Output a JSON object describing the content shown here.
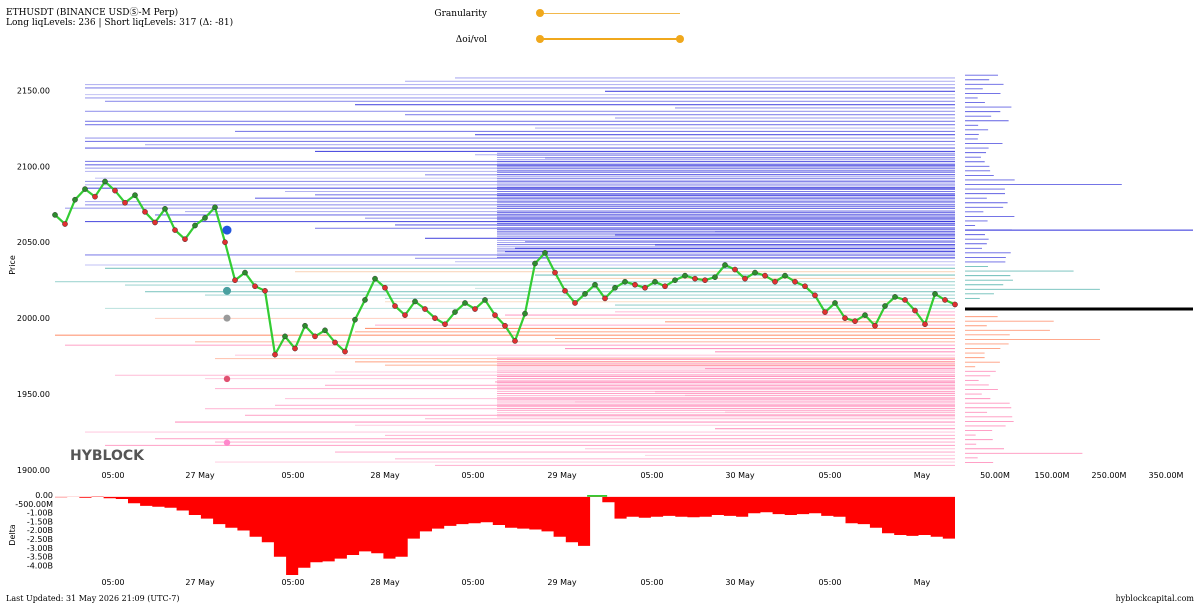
{
  "header": {
    "title": "ETHUSDT (BINANCE USDⓈ-M Perp)",
    "summary": "Long liqLevels: 236 | Short liqLevels: 317 (Δ: -81)"
  },
  "controls": {
    "granularity_label": "Granularity",
    "granularity_value": 0.0,
    "oi_vol_label": "Δoi/vol",
    "oi_vol_range": [
      0.0,
      1.0
    ]
  },
  "footer": {
    "last_updated": "Last Updated: 31 May 2026 21:09 (UTC-7)",
    "site": "hyblockcapital.com"
  },
  "watermark": "HYBLOCK",
  "colors": {
    "up_candle": "#33cc33",
    "down_candle": "#e03030",
    "delta_fill": "#ff0000",
    "short_levels": "#2b2bd9",
    "long_levels": "#ff6fa8",
    "mid_levels": "#3aa8a0",
    "price_marker": "#000000"
  },
  "chart_data": [
    {
      "type": "line",
      "title": "",
      "ylabel": "Price",
      "ylim": [
        1900,
        2170
      ],
      "y_ticks": [
        "1900.00",
        "1950.00",
        "2000.00",
        "2050.00",
        "2100.00",
        "2150.00"
      ],
      "x_tick_labels": [
        "05:00",
        "27 May",
        "05:00",
        "28 May",
        "05:00",
        "29 May",
        "05:00",
        "30 May",
        "05:00",
        "May"
      ],
      "grid": false,
      "current_price": 2006,
      "series": [
        {
          "values": [
            2068,
            2062,
            2078,
            2085,
            2080,
            2090,
            2084,
            2076,
            2081,
            2070,
            2063,
            2072,
            2058,
            2052,
            2061,
            2066,
            2073,
            2050,
            2025,
            2030,
            2021,
            2018,
            1976,
            1988,
            1980,
            1995,
            1988,
            1992,
            1984,
            1978,
            1999,
            2012,
            2026,
            2020,
            2008,
            2002,
            2011,
            2006,
            2000,
            1996,
            2004,
            2010,
            2006,
            2012,
            2002,
            1995,
            1985,
            2003,
            2036,
            2043,
            2030,
            2018,
            2010,
            2016,
            2022,
            2013,
            2020,
            2024,
            2022,
            2020,
            2024,
            2021,
            2025,
            2028,
            2026,
            2025,
            2027,
            2035,
            2032,
            2026,
            2030,
            2028,
            2024,
            2028,
            2024,
            2021,
            2015,
            2004,
            2010,
            2000,
            1998,
            2002,
            1995,
            2008,
            2014,
            2012,
            2005,
            1996,
            2016,
            2012,
            2009
          ]
        }
      ],
      "liq_volume_axis_ticks": [
        "50.00M",
        "150.00M",
        "250.00M",
        "350.00M"
      ]
    },
    {
      "type": "area",
      "title": "",
      "ylabel": "Delta",
      "ylim": [
        -4.3,
        0.1
      ],
      "y_ticks": [
        "0.00",
        "-500.00M",
        "-1.00B",
        "-1.50B",
        "-2.00B",
        "-2.50B",
        "-3.00B",
        "-3.50B",
        "-4.00B"
      ],
      "x_tick_labels": [
        "05:00",
        "27 May",
        "05:00",
        "28 May",
        "05:00",
        "29 May",
        "05:00",
        "30 May",
        "05:00",
        "May"
      ],
      "series": [
        {
          "values": [
            -0.02,
            0.0,
            -0.05,
            0.02,
            -0.08,
            -0.12,
            -0.35,
            -0.5,
            -0.55,
            -0.6,
            -0.75,
            -1.0,
            -1.2,
            -1.5,
            -1.7,
            -1.85,
            -2.2,
            -2.5,
            -3.3,
            -4.3,
            -3.9,
            -3.6,
            -3.55,
            -3.4,
            -3.2,
            -3.0,
            -3.1,
            -3.4,
            -3.3,
            -2.3,
            -1.9,
            -1.75,
            -1.6,
            -1.5,
            -1.45,
            -1.4,
            -1.55,
            -1.7,
            -1.75,
            -1.8,
            -1.9,
            -2.2,
            -2.5,
            -2.7,
            0.1,
            -0.3,
            -1.2,
            -1.1,
            -1.15,
            -1.1,
            -1.05,
            -1.1,
            -1.12,
            -1.1,
            -1.0,
            -1.05,
            -1.1,
            -0.9,
            -0.85,
            -0.95,
            -1.0,
            -0.95,
            -0.9,
            -1.05,
            -1.1,
            -1.45,
            -1.5,
            -1.7,
            -2.0,
            -2.1,
            -2.15,
            -2.1,
            -2.2,
            -2.3,
            -2.25
          ]
        }
      ]
    }
  ]
}
